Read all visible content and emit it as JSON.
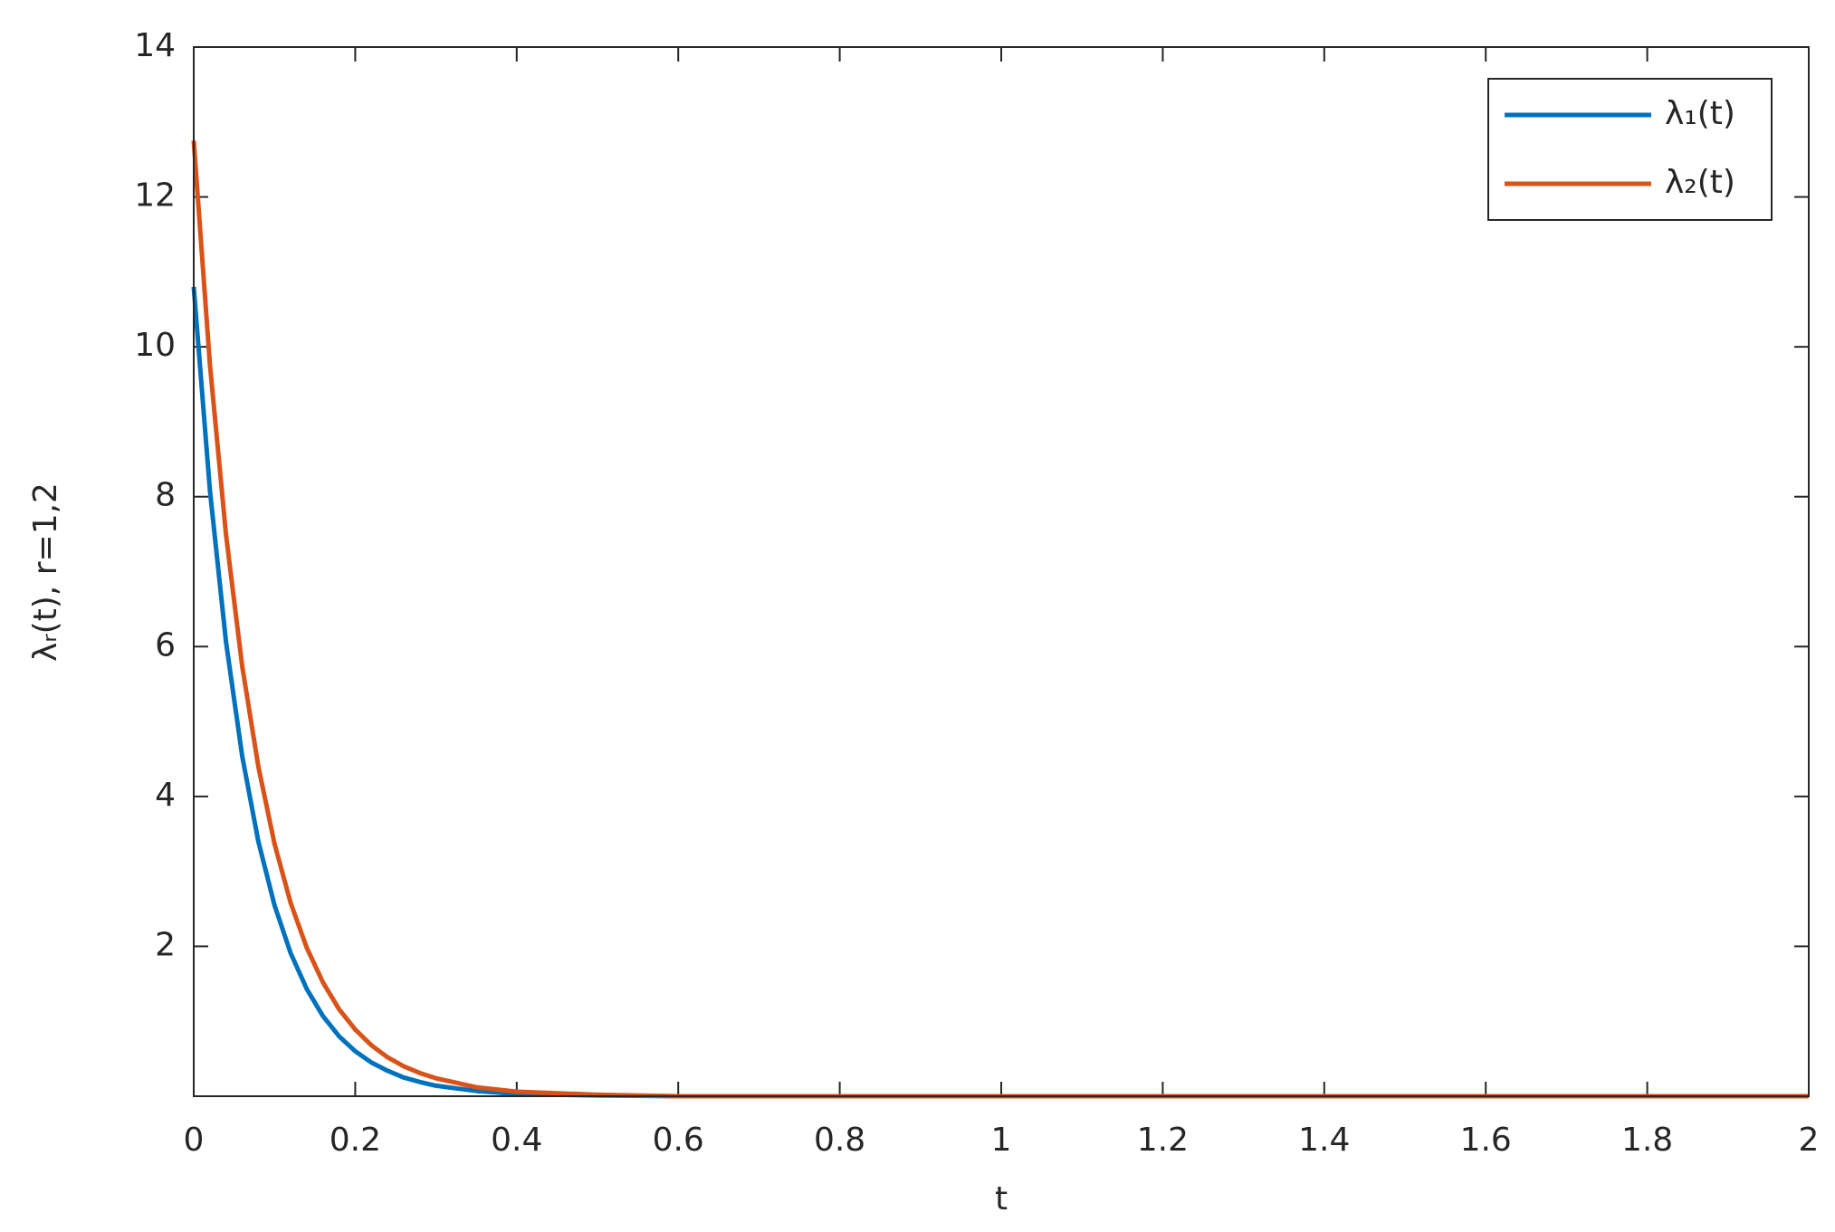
{
  "chart_data": {
    "type": "line",
    "xlabel": "t",
    "ylabel": "λᵣ(t), r=1,2",
    "x": [
      0,
      0.02,
      0.04,
      0.06,
      0.08,
      0.1,
      0.12,
      0.14,
      0.16,
      0.18,
      0.2,
      0.22,
      0.24,
      0.26,
      0.28,
      0.3,
      0.35,
      0.4,
      0.5,
      0.6,
      0.8,
      1,
      1.2,
      1.4,
      1.6,
      1.8,
      2
    ],
    "series": [
      {
        "name": "λ₁(t)",
        "color": "#0072bd",
        "values": [
          10.8,
          8.09,
          6.06,
          4.54,
          3.4,
          2.55,
          1.91,
          1.43,
          1.07,
          0.8,
          0.6,
          0.45,
          0.34,
          0.25,
          0.19,
          0.14,
          0.07,
          0.03,
          0.01,
          0,
          0,
          0,
          0,
          0,
          0,
          0,
          0
        ]
      },
      {
        "name": "λ₂(t)",
        "color": "#d95319",
        "values": [
          12.75,
          9.77,
          7.49,
          5.74,
          4.4,
          3.37,
          2.58,
          1.98,
          1.52,
          1.16,
          0.89,
          0.68,
          0.52,
          0.4,
          0.31,
          0.24,
          0.12,
          0.06,
          0.02,
          0,
          0,
          0,
          0,
          0,
          0,
          0,
          0
        ]
      }
    ],
    "xlim": [
      0,
      2
    ],
    "xticks": [
      0,
      0.2,
      0.4,
      0.6,
      0.8,
      1,
      1.2,
      1.4,
      1.6,
      1.8,
      2
    ],
    "ylim": [
      0,
      14
    ],
    "yticks": [
      2,
      4,
      6,
      8,
      10,
      12,
      14
    ],
    "grid": false,
    "legend": "upper right"
  }
}
